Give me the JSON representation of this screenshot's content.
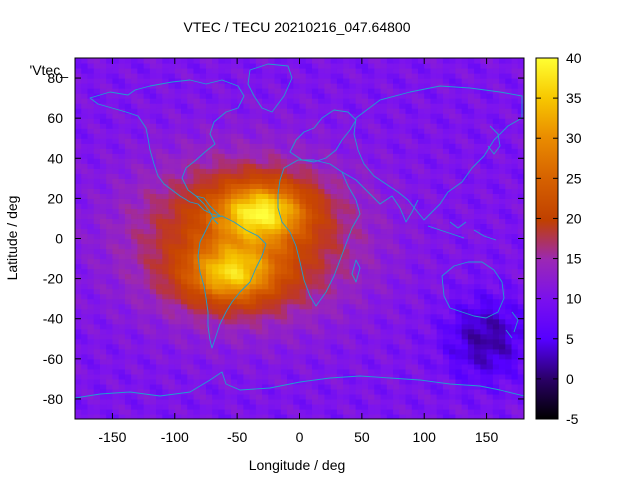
{
  "chart_data": {
    "type": "heatmap",
    "title": "VTEC / TECU 20210216_047.64800",
    "xlabel": "Longitude / deg",
    "ylabel": "Latitude / deg",
    "legend_label": "'Vtec_",
    "xlim": [
      -180,
      180
    ],
    "ylim": [
      -90,
      90
    ],
    "xticks": [
      -150,
      -100,
      -50,
      0,
      50,
      100,
      150
    ],
    "yticks": [
      -80,
      -60,
      -40,
      -20,
      0,
      20,
      40,
      60,
      80
    ],
    "colorbar": {
      "range": [
        -5,
        40
      ],
      "ticks": [
        -5,
        0,
        5,
        10,
        15,
        20,
        25,
        30,
        35,
        40
      ]
    },
    "background_vtec": 8,
    "features": [
      {
        "name": "equatorial-anomaly-north",
        "lon": -30,
        "lat": 14,
        "peak_vtec": 38
      },
      {
        "name": "equatorial-anomaly-south",
        "lon": -55,
        "lat": -18,
        "peak_vtec": 36
      },
      {
        "name": "southern-trough",
        "lon": 150,
        "lat": -50,
        "min_vtec": 2
      }
    ],
    "overlays": [
      "coastlines"
    ]
  },
  "colors": {
    "coastline": "#1f9fd0",
    "axis": "#000000"
  }
}
